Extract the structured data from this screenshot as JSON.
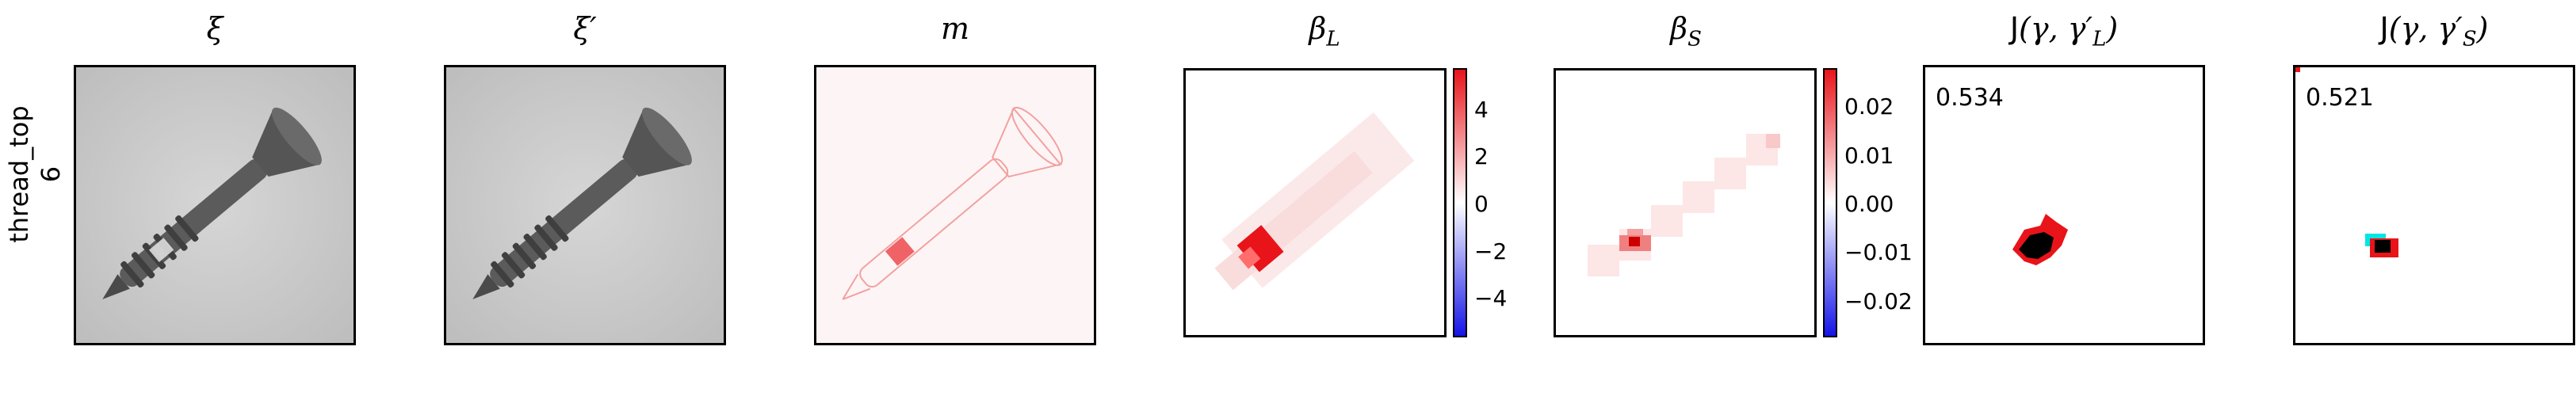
{
  "row": {
    "line1": "thread_top",
    "line2": "6"
  },
  "panels": {
    "xi": {
      "title": "ξ"
    },
    "xi_prime": {
      "title": "ξ′"
    },
    "m": {
      "title": "m"
    },
    "beta_l": {
      "title": "β",
      "sub": "L",
      "colorbar_ticks": [
        "4",
        "2",
        "0",
        "−2",
        "−4"
      ]
    },
    "beta_s": {
      "title": "β",
      "sub": "S",
      "colorbar_ticks": [
        "0.02",
        "0.01",
        "0.00",
        "−0.01",
        "−0.02"
      ]
    },
    "j_l": {
      "title_pre": "J",
      "title_args": "(γ, γ′",
      "title_sub": "L",
      "title_end": ")",
      "score": "0.534"
    },
    "j_s": {
      "title_pre": "J",
      "title_args": "(γ, γ′",
      "title_sub": "S",
      "title_end": ")",
      "score": "0.521"
    }
  },
  "colors": {
    "red": "#e8141a",
    "blue": "#1414e8",
    "cyan": "#00e5e5",
    "black": "#000000"
  }
}
